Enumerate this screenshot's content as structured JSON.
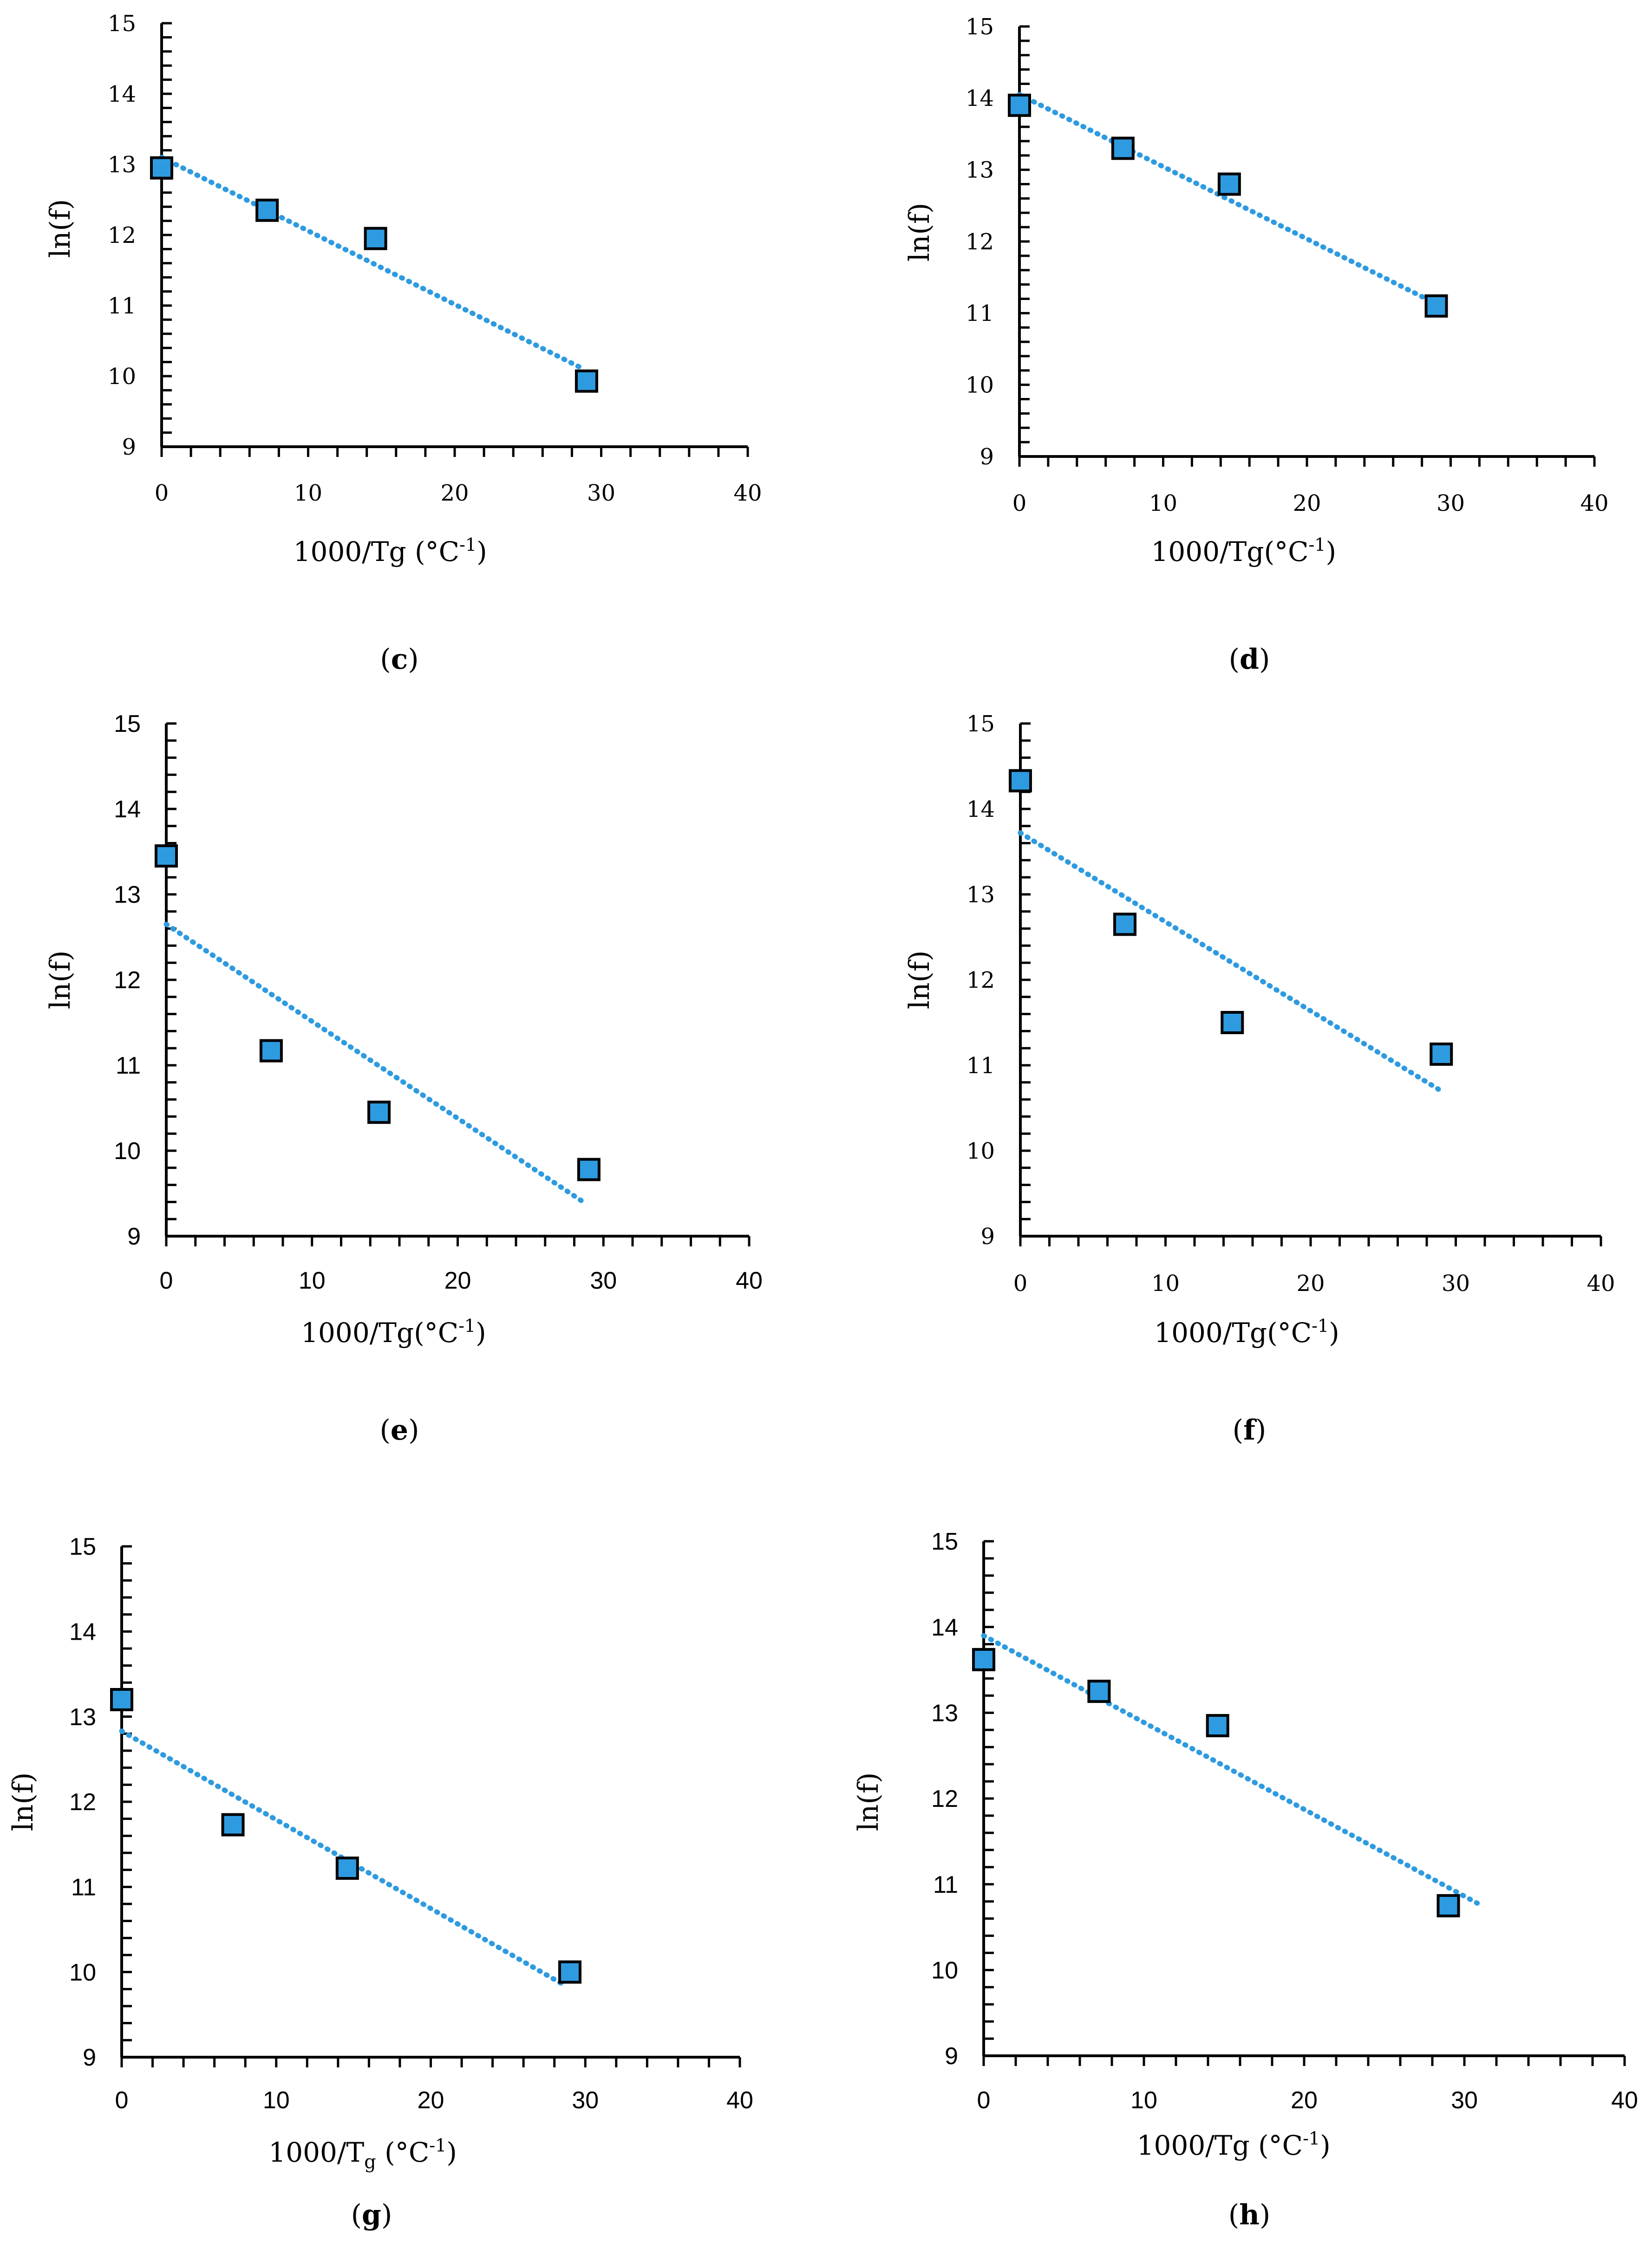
{
  "style": {
    "marker_fill": "#2e9be0",
    "marker_stroke": "#000000",
    "trend_color": "#2e9be0",
    "axis_color": "#000000"
  },
  "chart_data": [
    {
      "panel": "c",
      "type": "scatter",
      "label_open": "(",
      "label_letter": "c",
      "label_close": ")",
      "xlabel": "1000/Tg (°C",
      "xlabel_sup": "-1",
      "xlabel_tail": ")",
      "ylabel": "ln(f)",
      "xlim": [
        0,
        40
      ],
      "ylim": [
        9,
        15
      ],
      "grid": false,
      "xticks": [
        "0",
        "10",
        "20",
        "30",
        "40"
      ],
      "yticks": [
        "9",
        "10",
        "11",
        "12",
        "13",
        "14",
        "15"
      ],
      "series": [
        {
          "x": [
            0,
            7.2,
            14.6,
            29.0
          ],
          "y": [
            12.95,
            12.35,
            11.95,
            9.93
          ]
        }
      ],
      "trendline": {
        "x": [
          0,
          28.8
        ],
        "y": [
          13.1,
          10.1
        ]
      }
    },
    {
      "panel": "d",
      "type": "scatter",
      "label_open": "(",
      "label_letter": "d",
      "label_close": ")",
      "xlabel": "1000/Tg(°C",
      "xlabel_sup": "-1",
      "xlabel_tail": ")",
      "ylabel": "ln(f)",
      "xlim": [
        0,
        40
      ],
      "ylim": [
        9,
        15
      ],
      "grid": false,
      "xticks": [
        "0",
        "10",
        "20",
        "30",
        "40"
      ],
      "yticks": [
        "9",
        "10",
        "11",
        "12",
        "13",
        "14",
        "15"
      ],
      "series": [
        {
          "x": [
            0,
            7.2,
            14.6,
            29.0
          ],
          "y": [
            13.9,
            13.3,
            12.8,
            11.1
          ]
        }
      ],
      "trendline": {
        "x": [
          0,
          28.8
        ],
        "y": [
          14.05,
          11.15
        ]
      }
    },
    {
      "panel": "e",
      "type": "scatter",
      "label_open": "(",
      "label_letter": "e",
      "label_close": ")",
      "xlabel": "1000/Tg(°C",
      "xlabel_sup": "-1",
      "xlabel_tail": ")",
      "ylabel": "ln(f)",
      "xlim": [
        0,
        40
      ],
      "ylim": [
        9,
        15
      ],
      "grid": false,
      "xticks": [
        "0",
        "10",
        "20",
        "30",
        "40"
      ],
      "yticks": [
        "9",
        "10",
        "11",
        "12",
        "13",
        "14",
        "15"
      ],
      "series": [
        {
          "x": [
            0,
            7.2,
            14.6,
            29.0
          ],
          "y": [
            13.45,
            11.17,
            10.45,
            9.78
          ]
        }
      ],
      "trendline": {
        "x": [
          0,
          28.8
        ],
        "y": [
          12.65,
          9.38
        ]
      }
    },
    {
      "panel": "f",
      "type": "scatter",
      "label_open": "(",
      "label_letter": "f",
      "label_close": ")",
      "xlabel": "1000/Tg(°C",
      "xlabel_sup": "-1",
      "xlabel_tail": ")",
      "ylabel": "ln(f)",
      "xlim": [
        0,
        40
      ],
      "ylim": [
        9,
        15
      ],
      "grid": false,
      "xticks": [
        "0",
        "10",
        "20",
        "30",
        "40"
      ],
      "yticks": [
        "9",
        "10",
        "11",
        "12",
        "13",
        "14",
        "15"
      ],
      "series": [
        {
          "x": [
            0,
            7.2,
            14.6,
            29.0
          ],
          "y": [
            14.33,
            12.65,
            11.5,
            11.13
          ]
        }
      ],
      "trendline": {
        "x": [
          0,
          28.8
        ],
        "y": [
          13.72,
          10.72
        ]
      }
    },
    {
      "panel": "g",
      "type": "scatter",
      "label_open": "(",
      "label_letter": "g",
      "label_close": ")",
      "xlabel": "1000/T",
      "xlabel_sub": "g",
      "xlabel_tail": " (°C",
      "xlabel_sup": "-1",
      "xlabel_end": ")",
      "ylabel": "ln(f)",
      "xlim": [
        0,
        40
      ],
      "ylim": [
        9,
        15
      ],
      "grid": false,
      "xticks": [
        "0",
        "10",
        "20",
        "30",
        "40"
      ],
      "yticks": [
        "9",
        "10",
        "11",
        "12",
        "13",
        "14",
        "15"
      ],
      "series": [
        {
          "x": [
            0,
            7.2,
            14.6,
            29.0
          ],
          "y": [
            13.2,
            11.73,
            11.22,
            10.0
          ]
        }
      ],
      "trendline": {
        "x": [
          0,
          28.8
        ],
        "y": [
          12.83,
          9.83
        ]
      }
    },
    {
      "panel": "h",
      "type": "scatter",
      "label_open": "(",
      "label_letter": "h",
      "label_close": ")",
      "xlabel": "1000/Tg (°C",
      "xlabel_sup": "-1",
      "xlabel_tail": ")",
      "ylabel": "ln(f)",
      "xlim": [
        0,
        40
      ],
      "ylim": [
        9,
        15
      ],
      "grid": false,
      "xticks": [
        "0",
        "10",
        "20",
        "30",
        "40"
      ],
      "yticks": [
        "9",
        "10",
        "11",
        "12",
        "13",
        "14",
        "15"
      ],
      "series": [
        {
          "x": [
            0,
            7.2,
            14.6,
            29.0
          ],
          "y": [
            13.62,
            13.25,
            12.85,
            10.75
          ]
        }
      ],
      "trendline": {
        "x": [
          0,
          30.8
        ],
        "y": [
          13.9,
          10.78
        ]
      }
    }
  ]
}
